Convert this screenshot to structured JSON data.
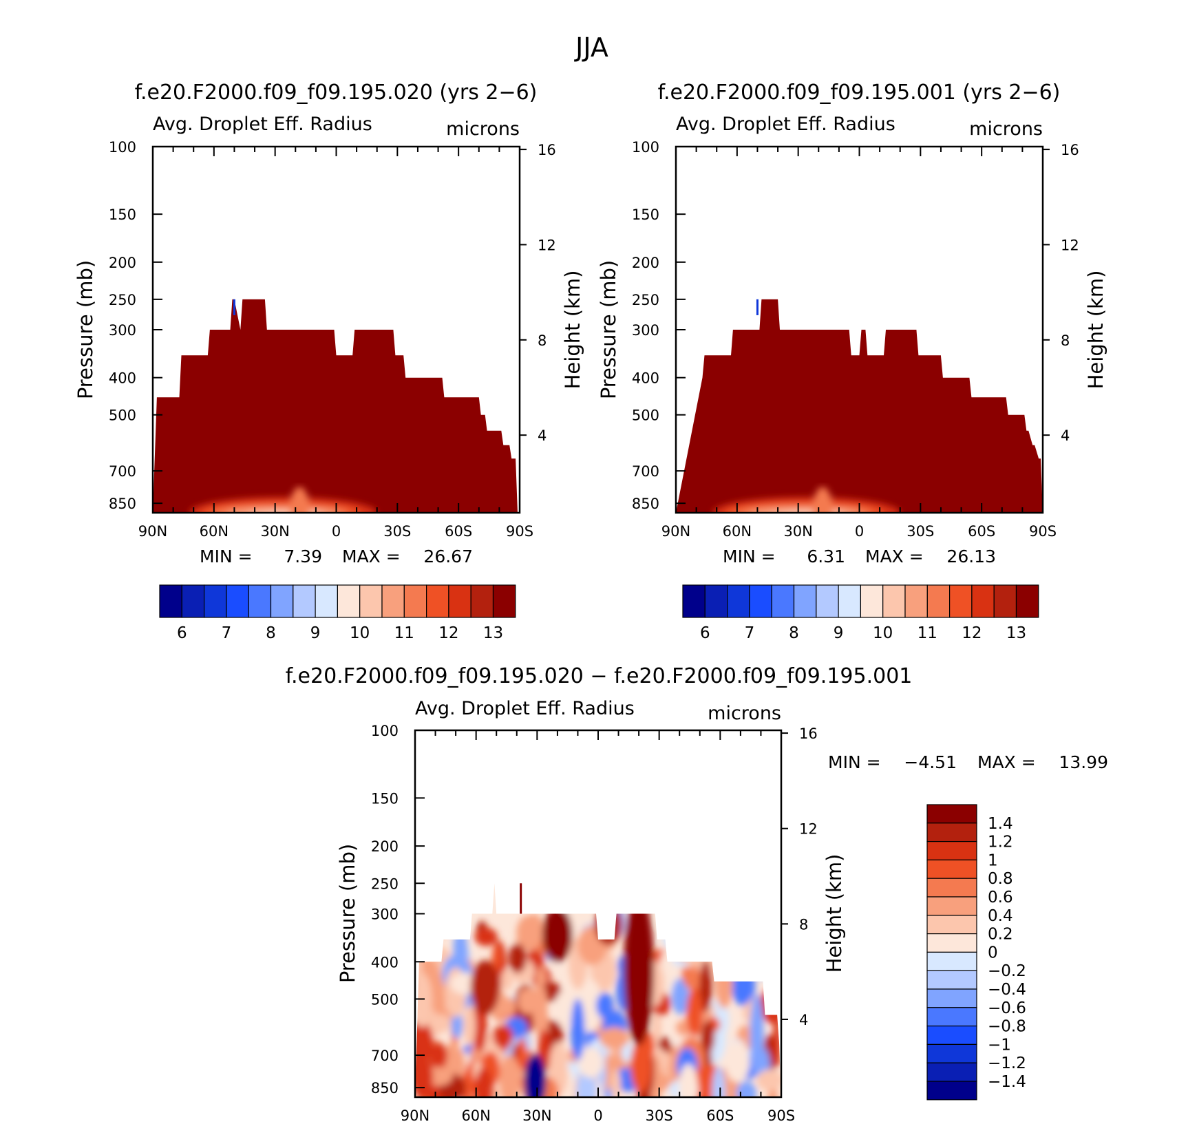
{
  "figure": {
    "title": "JJA",
    "colors": {
      "abs_scale": [
        "#00008b",
        "#0a1fb4",
        "#0f37d9",
        "#1a4dff",
        "#4a78ff",
        "#80a4ff",
        "#b3c9ff",
        "#d8e8ff",
        "#fde7da",
        "#fcc6ad",
        "#f8a07d",
        "#f47a50",
        "#ef5125",
        "#d93212",
        "#b3210e",
        "#8b0000"
      ],
      "diff_scale": [
        "#00008b",
        "#0a1fb4",
        "#0f37d9",
        "#1a4dff",
        "#4a78ff",
        "#80a4ff",
        "#b3c9ff",
        "#d8e8ff",
        "#fde7da",
        "#fcc6ad",
        "#f8a07d",
        "#f47a50",
        "#ef5125",
        "#d93212",
        "#b3210e",
        "#8b0000"
      ]
    }
  },
  "chart_data": [
    {
      "type": "heatmap",
      "title": "f.e20.F2000.f09_f09.195.020 (yrs 2−6)",
      "field_label": "Avg. Droplet Eff. Radius",
      "units_label": "microns",
      "ylabel": "Pressure (mb)",
      "y2label": "Height (km)",
      "x_ticks": [
        "90N",
        "60N",
        "30N",
        "0",
        "30S",
        "60S",
        "90S"
      ],
      "y_ticks": [
        100,
        150,
        200,
        250,
        300,
        400,
        500,
        700,
        850
      ],
      "y2_ticks": [
        16,
        12,
        8,
        4
      ],
      "ylim": [
        100,
        1000
      ],
      "xlim": [
        90,
        -90
      ],
      "min_text": "MIN =",
      "min_value": "7.39",
      "max_text": "MAX =",
      "max_value": "26.67",
      "colorbar_labels": [
        "6",
        "7",
        "8",
        "9",
        "10",
        "11",
        "12",
        "13"
      ],
      "profile_lat": [
        90,
        88,
        77,
        76,
        63,
        62,
        52,
        51,
        50,
        47,
        46,
        35,
        34,
        32,
        1,
        0,
        -8,
        -9,
        -24,
        -25,
        -28,
        -29,
        -33,
        -34,
        -52,
        -53,
        -56,
        -57,
        -70,
        -71,
        -73,
        -74,
        -81,
        -82,
        -85,
        -86,
        -88,
        -89,
        -90
      ],
      "profile_p": [
        1000,
        450,
        450,
        350,
        350,
        300,
        300,
        250,
        250,
        300,
        250,
        250,
        300,
        300,
        300,
        350,
        350,
        300,
        300,
        300,
        300,
        350,
        350,
        400,
        400,
        450,
        450,
        450,
        450,
        500,
        500,
        550,
        550,
        600,
        600,
        650,
        650,
        1000,
        1000
      ]
    },
    {
      "type": "heatmap",
      "title": "f.e20.F2000.f09_f09.195.001 (yrs 2−6)",
      "field_label": "Avg. Droplet Eff. Radius",
      "units_label": "microns",
      "ylabel": "Pressure (mb)",
      "y2label": "Height (km)",
      "x_ticks": [
        "90N",
        "60N",
        "30N",
        "0",
        "30S",
        "60S",
        "90S"
      ],
      "y_ticks": [
        100,
        150,
        200,
        250,
        300,
        400,
        500,
        700,
        850
      ],
      "y2_ticks": [
        16,
        12,
        8,
        4
      ],
      "ylim": [
        100,
        1000
      ],
      "xlim": [
        90,
        -90
      ],
      "min_text": "MIN =",
      "min_value": "6.31",
      "max_text": "MAX =",
      "max_value": "26.13",
      "colorbar_labels": [
        "6",
        "7",
        "8",
        "9",
        "10",
        "11",
        "12",
        "13"
      ],
      "profile_lat": [
        90,
        77,
        76,
        63,
        62,
        49,
        48,
        40,
        39,
        5,
        4,
        0,
        -1,
        -3,
        -4,
        -12,
        -13,
        -28,
        -29,
        -40,
        -41,
        -54,
        -55,
        -72,
        -73,
        -80,
        -81,
        -82,
        -83,
        -85,
        -86,
        -88,
        -89,
        -90
      ],
      "profile_p": [
        1000,
        400,
        350,
        350,
        300,
        300,
        250,
        250,
        300,
        300,
        350,
        350,
        300,
        300,
        350,
        350,
        300,
        300,
        350,
        350,
        400,
        400,
        450,
        450,
        500,
        500,
        500,
        550,
        550,
        600,
        600,
        650,
        650,
        1000
      ]
    },
    {
      "type": "heatmap",
      "title": "f.e20.F2000.f09_f09.195.020 − f.e20.F2000.f09_f09.195.001",
      "field_label": "Avg. Droplet Eff. Radius",
      "units_label": "microns",
      "ylabel": "Pressure (mb)",
      "y2label": "Height (km)",
      "x_ticks": [
        "90N",
        "60N",
        "30N",
        "0",
        "30S",
        "60S",
        "90S"
      ],
      "y_ticks": [
        100,
        150,
        200,
        250,
        300,
        400,
        500,
        700,
        850
      ],
      "y2_ticks": [
        16,
        12,
        8,
        4
      ],
      "ylim": [
        100,
        1000
      ],
      "xlim": [
        90,
        -90
      ],
      "min_text": "MIN =",
      "min_value": "−4.51",
      "max_text": "MAX =",
      "max_value": "13.99",
      "colorbar_labels": [
        "1.4",
        "1.2",
        "1",
        "0.8",
        "0.6",
        "0.4",
        "0.2",
        "0",
        "−0.2",
        "−0.4",
        "−0.6",
        "−0.8",
        "−1",
        "−1.2",
        "−1.4"
      ],
      "profile_lat": [
        90,
        88,
        77,
        76,
        63,
        62,
        52,
        51,
        50,
        47,
        46,
        35,
        34,
        32,
        1,
        0,
        -8,
        -9,
        -24,
        -25,
        -28,
        -29,
        -33,
        -34,
        -52,
        -53,
        -56,
        -57,
        -70,
        -71,
        -73,
        -74,
        -81,
        -82,
        -85,
        -86,
        -88,
        -89,
        -90
      ],
      "profile_p": [
        1000,
        400,
        400,
        350,
        350,
        300,
        300,
        250,
        300,
        300,
        300,
        300,
        300,
        300,
        300,
        350,
        350,
        300,
        300,
        300,
        300,
        350,
        350,
        400,
        400,
        400,
        400,
        450,
        450,
        450,
        450,
        450,
        450,
        550,
        550,
        550,
        550,
        650,
        1000
      ]
    }
  ]
}
